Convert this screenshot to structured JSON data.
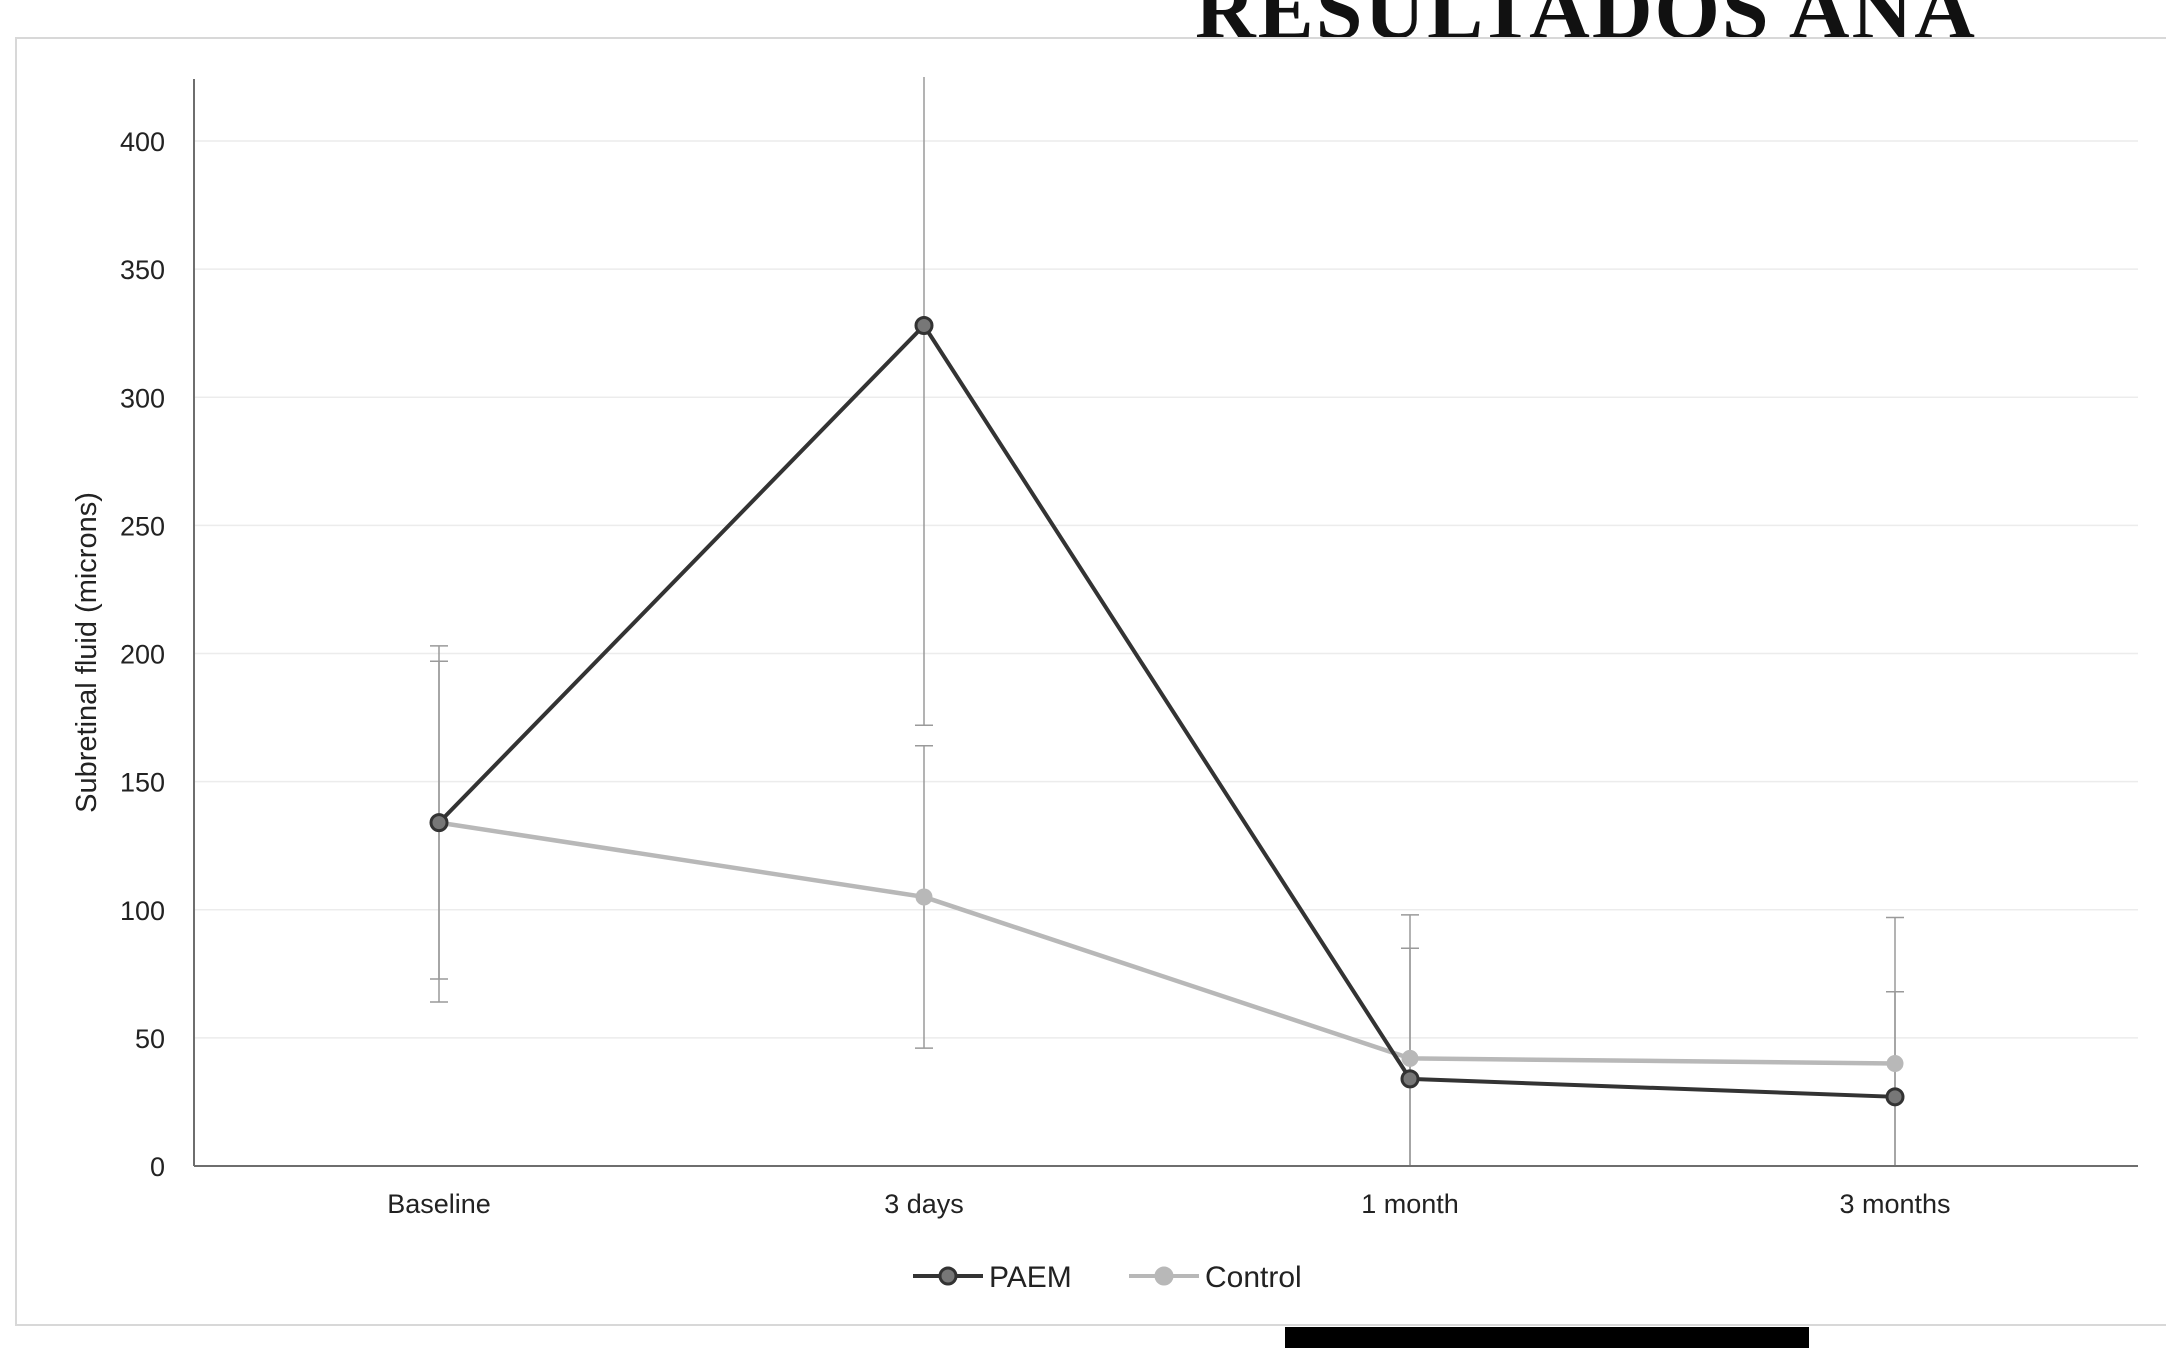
{
  "heading": "RESULTADOS ANA",
  "colors": {
    "paem": "#333333",
    "control": "#b8b8b8",
    "axis": "#6e6e6e",
    "grid": "#ececec"
  },
  "chart_data": {
    "type": "line",
    "title": "",
    "xlabel": "",
    "ylabel": "Subretinal fluid (microns)",
    "categories": [
      "Baseline",
      "3 days",
      "1 month",
      "3 months"
    ],
    "ylim": [
      0,
      420
    ],
    "yticks": [
      0,
      50,
      100,
      150,
      200,
      250,
      300,
      350,
      400
    ],
    "grid": true,
    "legend_position": "bottom",
    "series": [
      {
        "name": "PAEM",
        "values": [
          134,
          328,
          34,
          27
        ],
        "err_low": [
          73,
          172,
          0,
          0
        ],
        "err_high": [
          197,
          425,
          85,
          68
        ]
      },
      {
        "name": "Control",
        "values": [
          134,
          105,
          42,
          40
        ],
        "err_low": [
          64,
          46,
          0,
          0
        ],
        "err_high": [
          203,
          164,
          98,
          97
        ]
      }
    ]
  }
}
